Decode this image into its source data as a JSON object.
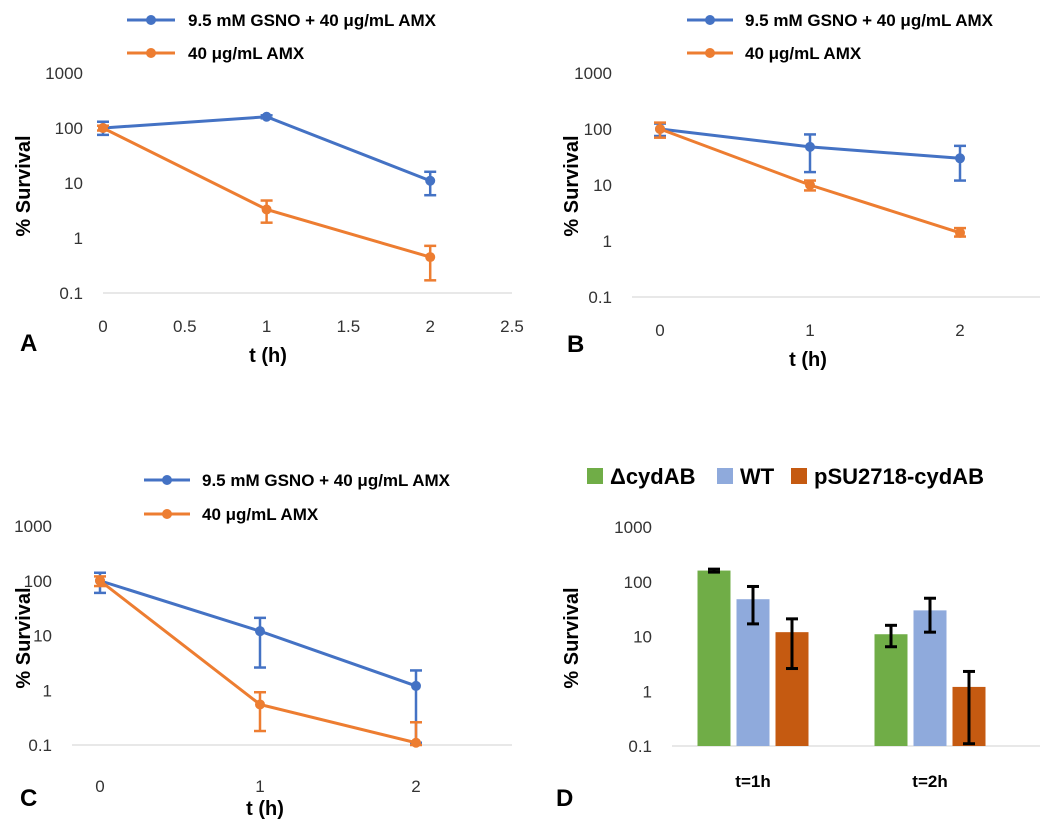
{
  "chart_data": [
    {
      "panel_label": "A",
      "type": "line",
      "xlabel": "t (h)",
      "ylabel": "% Survival",
      "yscale": "log",
      "ylim": [
        0.1,
        1000
      ],
      "xlim": [
        0,
        2.5
      ],
      "x_ticks": [
        "0",
        "0.5",
        "1",
        "1.5",
        "2",
        "2.5"
      ],
      "y_ticks": [
        "0.1",
        "1",
        "10",
        "100",
        "1000"
      ],
      "legend_placement": "top",
      "series": [
        {
          "name": "9.5 mM GSNO + 40 μg/mL AMX",
          "color": "#4472C4",
          "x": [
            0,
            1,
            2
          ],
          "y": [
            100,
            160,
            11
          ],
          "err_low": [
            75,
            150,
            6
          ],
          "err_high": [
            130,
            170,
            16
          ]
        },
        {
          "name": "40 μg/mL AMX",
          "color": "#ED7D31",
          "x": [
            0,
            1,
            2
          ],
          "y": [
            100,
            3.3,
            0.45
          ],
          "err_low": [
            90,
            1.9,
            0.17
          ],
          "err_high": [
            110,
            4.8,
            0.72
          ]
        }
      ]
    },
    {
      "panel_label": "B",
      "type": "line",
      "xlabel": "t (h)",
      "ylabel": "% Survival",
      "yscale": "log",
      "ylim": [
        0.1,
        1000
      ],
      "x_ticks": [
        "0",
        "1",
        "2"
      ],
      "y_ticks": [
        "0.1",
        "1",
        "10",
        "100",
        "1000"
      ],
      "legend_placement": "top",
      "series": [
        {
          "name": "9.5 mM GSNO + 40 μg/mL AMX",
          "color": "#4472C4",
          "x": [
            "0",
            "1",
            "2"
          ],
          "y": [
            100,
            48,
            30
          ],
          "err_low": [
            75,
            17,
            12
          ],
          "err_high": [
            125,
            80,
            50
          ]
        },
        {
          "name": "40 μg/mL AMX",
          "color": "#ED7D31",
          "x": [
            "0",
            "1",
            "2"
          ],
          "y": [
            100,
            10,
            1.4
          ],
          "err_low": [
            70,
            8,
            1.2
          ],
          "err_high": [
            130,
            12,
            1.7
          ]
        }
      ]
    },
    {
      "panel_label": "C",
      "type": "line",
      "xlabel": "t (h)",
      "ylabel": "% Survival",
      "yscale": "log",
      "ylim": [
        0.1,
        1000
      ],
      "x_ticks": [
        "0",
        "1",
        "2"
      ],
      "y_ticks": [
        "0.1",
        "1",
        "10",
        "100",
        "1000"
      ],
      "legend_placement": "top",
      "series": [
        {
          "name": "9.5 mM GSNO + 40 μg/mL AMX",
          "color": "#4472C4",
          "x": [
            "0",
            "1",
            "2"
          ],
          "y": [
            100,
            12,
            1.2
          ],
          "err_low": [
            60,
            2.6,
            0.11
          ],
          "err_high": [
            140,
            21,
            2.3
          ]
        },
        {
          "name": "40 μg/mL AMX",
          "color": "#ED7D31",
          "x": [
            "0",
            "1",
            "2"
          ],
          "y": [
            100,
            0.55,
            0.11
          ],
          "err_low": [
            80,
            0.18,
            0.1
          ],
          "err_high": [
            120,
            0.92,
            0.26
          ]
        }
      ]
    },
    {
      "panel_label": "D",
      "type": "bar",
      "ylabel": "% Survival",
      "yscale": "log",
      "ylim": [
        0.1,
        1000
      ],
      "y_ticks": [
        "0.1",
        "1",
        "10",
        "100",
        "1000"
      ],
      "categories": [
        "t=1h",
        "t=2h"
      ],
      "legend_placement": "top",
      "series": [
        {
          "name": "ΔcydAB",
          "color": "#70AD47",
          "values": [
            160,
            11
          ],
          "err_low": [
            150,
            6.5
          ],
          "err_high": [
            170,
            16
          ]
        },
        {
          "name": "WT",
          "color": "#8FAADC",
          "values": [
            48,
            30
          ],
          "err_low": [
            17,
            12
          ],
          "err_high": [
            82,
            50
          ]
        },
        {
          "name": "pSU2718-cydAB",
          "color": "#C55A11",
          "values": [
            12,
            1.2
          ],
          "err_low": [
            2.6,
            0.11
          ],
          "err_high": [
            21,
            2.3
          ]
        }
      ]
    }
  ]
}
